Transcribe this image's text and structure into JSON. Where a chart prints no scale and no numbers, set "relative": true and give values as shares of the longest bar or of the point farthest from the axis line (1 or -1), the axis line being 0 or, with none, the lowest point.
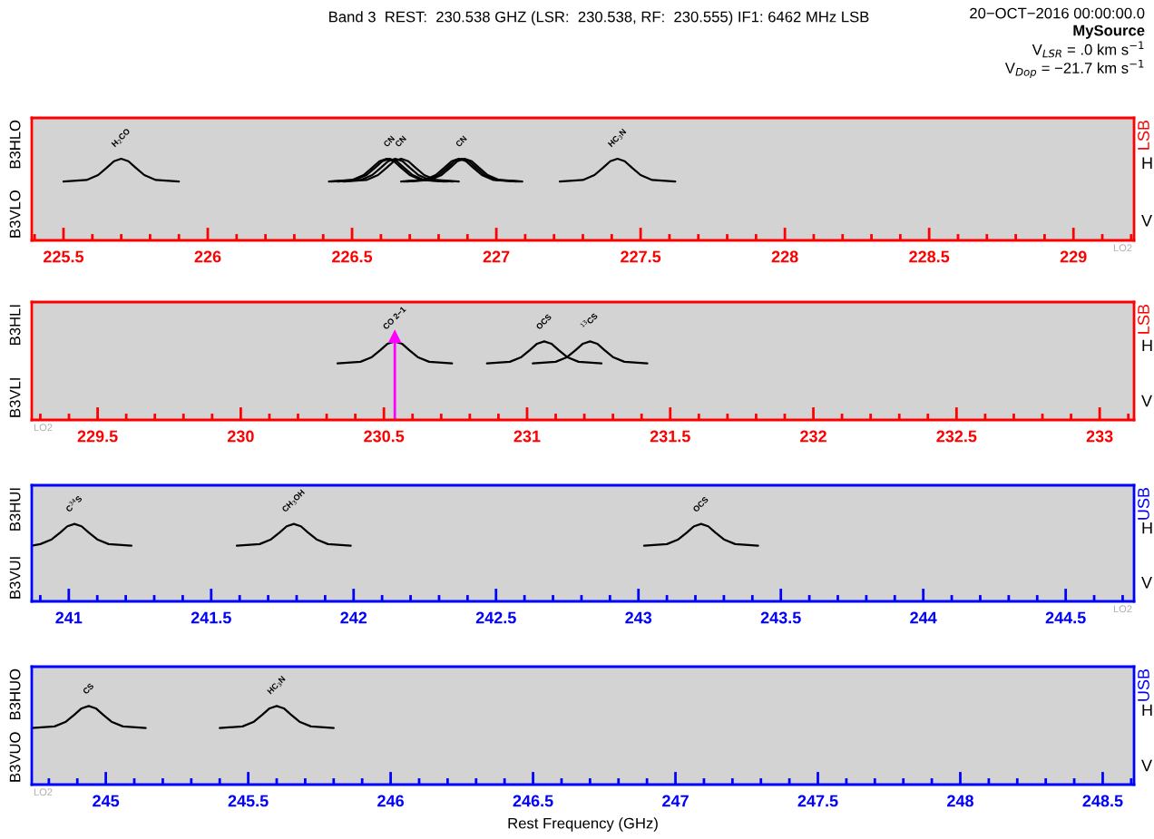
{
  "chart_data": [
    {
      "type": "line",
      "relative": true,
      "title": "Band 3  REST:  230.538 GHZ (LSR:  230.538, RF:  230.555) IF1: 6462 MHz LSB",
      "xlim": [
        225.39,
        229.21
      ],
      "xticks": [
        {
          "value": 225.4,
          "label": null
        },
        225.5,
        {
          "value": 225.6,
          "label": null
        },
        {
          "value": 225.7,
          "label": null
        },
        {
          "value": 225.8,
          "label": null
        },
        {
          "value": 225.9,
          "label": null
        },
        226,
        {
          "value": 226.1,
          "label": null
        },
        {
          "value": 226.2,
          "label": null
        },
        {
          "value": 226.3,
          "label": null
        },
        {
          "value": 226.4,
          "label": null
        },
        226.5,
        {
          "value": 226.6,
          "label": null
        },
        {
          "value": 226.7,
          "label": null
        },
        {
          "value": 226.8,
          "label": null
        },
        {
          "value": 226.9,
          "label": null
        },
        227,
        {
          "value": 227.1,
          "label": null
        },
        {
          "value": 227.2,
          "label": null
        },
        {
          "value": 227.3,
          "label": null
        },
        {
          "value": 227.4,
          "label": null
        },
        227.5,
        {
          "value": 227.6,
          "label": null
        },
        {
          "value": 227.7,
          "label": null
        },
        {
          "value": 227.8,
          "label": null
        },
        {
          "value": 227.9,
          "label": null
        },
        228,
        {
          "value": 228.1,
          "label": null
        },
        {
          "value": 228.2,
          "label": null
        },
        {
          "value": 228.3,
          "label": null
        },
        {
          "value": 228.4,
          "label": null
        },
        228.5,
        {
          "value": 228.6,
          "label": null
        },
        {
          "value": 228.7,
          "label": null
        },
        {
          "value": 228.8,
          "label": null
        },
        {
          "value": 228.9,
          "label": null
        },
        229,
        {
          "value": 229.1,
          "label": null
        },
        {
          "value": 229.2,
          "label": null
        }
      ],
      "series": [
        {
          "color": "#000000",
          "x": [
            225.5,
            225.58,
            225.62,
            225.65,
            225.675,
            225.7,
            225.725,
            225.75,
            225.78,
            225.82,
            225.9
          ],
          "values": [
            0.72,
            0.74,
            0.8,
            0.89,
            0.97,
            1,
            0.97,
            0.89,
            0.8,
            0.74,
            0.72
          ]
        },
        {
          "color": "#000000",
          "x": [
            226.42,
            226.5,
            226.54,
            226.57,
            226.595,
            226.62,
            226.645,
            226.67,
            226.7,
            226.74,
            226.82
          ],
          "values": [
            0.72,
            0.74,
            0.8,
            0.89,
            0.97,
            1,
            0.97,
            0.89,
            0.8,
            0.74,
            0.72
          ]
        },
        {
          "color": "#000000",
          "x": [
            226.43,
            226.51,
            226.55,
            226.58,
            226.605,
            226.63,
            226.655,
            226.68,
            226.71,
            226.75,
            226.83
          ],
          "values": [
            0.72,
            0.74,
            0.8,
            0.89,
            0.97,
            1,
            0.97,
            0.89,
            0.8,
            0.74,
            0.72
          ]
        },
        {
          "color": "#000000",
          "x": [
            226.45,
            226.53,
            226.57,
            226.6,
            226.625,
            226.65,
            226.675,
            226.7,
            226.73,
            226.77,
            226.85
          ],
          "values": [
            0.72,
            0.74,
            0.8,
            0.89,
            0.97,
            1,
            0.97,
            0.89,
            0.8,
            0.74,
            0.72
          ]
        },
        {
          "color": "#000000",
          "x": [
            226.47,
            226.55,
            226.59,
            226.62,
            226.645,
            226.67,
            226.695,
            226.72,
            226.75,
            226.79,
            226.87
          ],
          "values": [
            0.72,
            0.74,
            0.8,
            0.89,
            0.97,
            1,
            0.97,
            0.89,
            0.8,
            0.74,
            0.72
          ]
        },
        {
          "color": "#000000",
          "x": [
            226.67,
            226.75,
            226.79,
            226.82,
            226.845,
            226.87,
            226.895,
            226.92,
            226.95,
            226.99,
            227.07
          ],
          "values": [
            0.72,
            0.74,
            0.8,
            0.89,
            0.97,
            1,
            0.97,
            0.89,
            0.8,
            0.74,
            0.72
          ]
        },
        {
          "color": "#000000",
          "x": [
            226.68,
            226.76,
            226.8,
            226.83,
            226.855,
            226.88,
            226.905,
            226.93,
            226.96,
            227,
            227.08
          ],
          "values": [
            0.72,
            0.74,
            0.8,
            0.89,
            0.97,
            1,
            0.97,
            0.89,
            0.8,
            0.74,
            0.72
          ]
        },
        {
          "color": "#000000",
          "x": [
            226.69,
            226.77,
            226.81,
            226.84,
            226.865,
            226.89,
            226.915,
            226.94,
            226.97,
            227.01,
            227.09
          ],
          "values": [
            0.72,
            0.74,
            0.8,
            0.89,
            0.97,
            1,
            0.97,
            0.89,
            0.8,
            0.74,
            0.72
          ]
        },
        {
          "color": "#000000",
          "x": [
            227.22,
            227.3,
            227.34,
            227.37,
            227.395,
            227.42,
            227.445,
            227.47,
            227.5,
            227.54,
            227.62
          ],
          "values": [
            0.72,
            0.74,
            0.8,
            0.89,
            0.97,
            1,
            0.97,
            0.89,
            0.8,
            0.74,
            0.72
          ]
        }
      ],
      "annotations": [
        "B3HLO",
        "B3VLO",
        "LSB",
        "H",
        "V",
        "LO2",
        "20−OCT−2016 00:00:00.0",
        "MySource",
        "V$_{LSR}$ = .0 km s$^{−1}$",
        "V$_{Dop}$ = −21.7 km s$^{−1}$",
        {
          "text": "H$_{2}$CO",
          "x": 225.7,
          "y": 1
        },
        {
          "text": "CN",
          "x": 226.63,
          "y": 1
        },
        {
          "text": "CN",
          "x": 226.67,
          "y": 1
        },
        {
          "text": "CN",
          "x": 226.88,
          "y": 1
        },
        {
          "text": "HC$_{3}$N",
          "x": 227.42,
          "y": 1
        }
      ]
    },
    {
      "type": "line",
      "relative": true,
      "xlim": [
        229.27,
        233.12
      ],
      "xticks": [
        {
          "value": 229.3,
          "label": null
        },
        {
          "value": 229.4,
          "label": null
        },
        229.5,
        {
          "value": 229.6,
          "label": null
        },
        {
          "value": 229.7,
          "label": null
        },
        {
          "value": 229.8,
          "label": null
        },
        {
          "value": 229.9,
          "label": null
        },
        230,
        {
          "value": 230.1,
          "label": null
        },
        {
          "value": 230.2,
          "label": null
        },
        {
          "value": 230.3,
          "label": null
        },
        {
          "value": 230.4,
          "label": null
        },
        230.5,
        {
          "value": 230.6,
          "label": null
        },
        {
          "value": 230.7,
          "label": null
        },
        {
          "value": 230.8,
          "label": null
        },
        {
          "value": 230.9,
          "label": null
        },
        231,
        {
          "value": 231.1,
          "label": null
        },
        {
          "value": 231.2,
          "label": null
        },
        {
          "value": 231.3,
          "label": null
        },
        {
          "value": 231.4,
          "label": null
        },
        231.5,
        {
          "value": 231.6,
          "label": null
        },
        {
          "value": 231.7,
          "label": null
        },
        {
          "value": 231.8,
          "label": null
        },
        {
          "value": 231.9,
          "label": null
        },
        232,
        {
          "value": 232.1,
          "label": null
        },
        {
          "value": 232.2,
          "label": null
        },
        {
          "value": 232.3,
          "label": null
        },
        {
          "value": 232.4,
          "label": null
        },
        232.5,
        {
          "value": 232.6,
          "label": null
        },
        {
          "value": 232.7,
          "label": null
        },
        {
          "value": 232.8,
          "label": null
        },
        {
          "value": 232.9,
          "label": null
        },
        233,
        {
          "value": 233.1,
          "label": null
        }
      ],
      "series": [
        {
          "color": "#000000",
          "x": [
            230.338,
            230.418,
            230.458,
            230.488,
            230.513,
            230.538,
            230.563,
            230.588,
            230.618,
            230.658,
            230.738
          ],
          "values": [
            0.72,
            0.74,
            0.8,
            0.89,
            0.97,
            1,
            0.97,
            0.89,
            0.8,
            0.74,
            0.72
          ]
        },
        {
          "color": "#000000",
          "x": [
            230.86,
            230.94,
            230.98,
            231.01,
            231.035,
            231.06,
            231.085,
            231.11,
            231.14,
            231.18,
            231.26
          ],
          "values": [
            0.72,
            0.74,
            0.8,
            0.89,
            0.97,
            1,
            0.97,
            0.89,
            0.8,
            0.74,
            0.72
          ]
        },
        {
          "color": "#000000",
          "x": [
            231.02,
            231.1,
            231.14,
            231.17,
            231.195,
            231.22,
            231.245,
            231.27,
            231.3,
            231.34,
            231.42
          ],
          "values": [
            0.72,
            0.74,
            0.8,
            0.89,
            0.97,
            1,
            0.97,
            0.89,
            0.8,
            0.74,
            0.72
          ]
        }
      ],
      "ref_lines": [
        {
          "axis": "x",
          "value": 230.538,
          "color": "#ff00ff"
        }
      ],
      "annotations": [
        "B3HLI",
        "B3VLI",
        "LSB",
        "H",
        "V",
        "LO2",
        {
          "text": "CO 2−1",
          "x": 230.538,
          "y": 1
        },
        {
          "text": "OCS",
          "x": 231.06,
          "y": 1
        },
        {
          "text": "$^{13}$CS",
          "x": 231.22,
          "y": 1
        }
      ]
    },
    {
      "type": "line",
      "relative": true,
      "xlim": [
        240.87,
        244.74
      ],
      "xticks": [
        {
          "value": 240.9,
          "label": null
        },
        241,
        {
          "value": 241.1,
          "label": null
        },
        {
          "value": 241.2,
          "label": null
        },
        {
          "value": 241.3,
          "label": null
        },
        {
          "value": 241.4,
          "label": null
        },
        241.5,
        {
          "value": 241.6,
          "label": null
        },
        {
          "value": 241.7,
          "label": null
        },
        {
          "value": 241.8,
          "label": null
        },
        {
          "value": 241.9,
          "label": null
        },
        242,
        {
          "value": 242.1,
          "label": null
        },
        {
          "value": 242.2,
          "label": null
        },
        {
          "value": 242.3,
          "label": null
        },
        {
          "value": 242.4,
          "label": null
        },
        242.5,
        {
          "value": 242.6,
          "label": null
        },
        {
          "value": 242.7,
          "label": null
        },
        {
          "value": 242.8,
          "label": null
        },
        {
          "value": 242.9,
          "label": null
        },
        243,
        {
          "value": 243.1,
          "label": null
        },
        {
          "value": 243.2,
          "label": null
        },
        {
          "value": 243.3,
          "label": null
        },
        {
          "value": 243.4,
          "label": null
        },
        243.5,
        {
          "value": 243.6,
          "label": null
        },
        {
          "value": 243.7,
          "label": null
        },
        {
          "value": 243.8,
          "label": null
        },
        {
          "value": 243.9,
          "label": null
        },
        244,
        {
          "value": 244.1,
          "label": null
        },
        {
          "value": 244.2,
          "label": null
        },
        {
          "value": 244.3,
          "label": null
        },
        {
          "value": 244.4,
          "label": null
        },
        244.5,
        {
          "value": 244.6,
          "label": null
        },
        {
          "value": 244.7,
          "label": null
        }
      ],
      "series": [
        {
          "color": "#000000",
          "x": [
            240.87,
            240.9,
            240.94,
            240.97,
            240.995,
            241.02,
            241.045,
            241.07,
            241.1,
            241.14,
            241.22
          ],
          "values": [
            0.72,
            0.74,
            0.8,
            0.89,
            0.97,
            1,
            0.97,
            0.89,
            0.8,
            0.74,
            0.72
          ]
        },
        {
          "color": "#000000",
          "x": [
            241.59,
            241.67,
            241.71,
            241.74,
            241.765,
            241.79,
            241.815,
            241.84,
            241.87,
            241.91,
            241.99
          ],
          "values": [
            0.72,
            0.74,
            0.8,
            0.89,
            0.97,
            1,
            0.97,
            0.89,
            0.8,
            0.74,
            0.72
          ]
        },
        {
          "color": "#000000",
          "x": [
            243.02,
            243.1,
            243.14,
            243.17,
            243.195,
            243.22,
            243.245,
            243.27,
            243.3,
            243.34,
            243.42
          ],
          "values": [
            0.72,
            0.74,
            0.8,
            0.89,
            0.97,
            1,
            0.97,
            0.89,
            0.8,
            0.74,
            0.72
          ]
        }
      ],
      "annotations": [
        "B3HUI",
        "B3VUI",
        "USB",
        "H",
        "V",
        "LO2",
        {
          "text": "C$^{34}$S",
          "x": 241.02,
          "y": 1
        },
        {
          "text": "CH$_{3}$OH",
          "x": 241.79,
          "y": 1
        },
        {
          "text": "OCS",
          "x": 243.22,
          "y": 1
        }
      ]
    },
    {
      "type": "line",
      "relative": true,
      "xlabel": "Rest Frequency (GHz)",
      "xlim": [
        244.74,
        248.61
      ],
      "xticks": [
        {
          "value": 244.8,
          "label": null
        },
        {
          "value": 244.9,
          "label": null
        },
        245,
        {
          "value": 245.1,
          "label": null
        },
        {
          "value": 245.2,
          "label": null
        },
        {
          "value": 245.3,
          "label": null
        },
        {
          "value": 245.4,
          "label": null
        },
        245.5,
        {
          "value": 245.6,
          "label": null
        },
        {
          "value": 245.7,
          "label": null
        },
        {
          "value": 245.8,
          "label": null
        },
        {
          "value": 245.9,
          "label": null
        },
        246,
        {
          "value": 246.1,
          "label": null
        },
        {
          "value": 246.2,
          "label": null
        },
        {
          "value": 246.3,
          "label": null
        },
        {
          "value": 246.4,
          "label": null
        },
        246.5,
        {
          "value": 246.6,
          "label": null
        },
        {
          "value": 246.7,
          "label": null
        },
        {
          "value": 246.8,
          "label": null
        },
        {
          "value": 246.9,
          "label": null
        },
        247,
        {
          "value": 247.1,
          "label": null
        },
        {
          "value": 247.2,
          "label": null
        },
        {
          "value": 247.3,
          "label": null
        },
        {
          "value": 247.4,
          "label": null
        },
        247.5,
        {
          "value": 247.6,
          "label": null
        },
        {
          "value": 247.7,
          "label": null
        },
        {
          "value": 247.8,
          "label": null
        },
        {
          "value": 247.9,
          "label": null
        },
        248,
        {
          "value": 248.1,
          "label": null
        },
        {
          "value": 248.2,
          "label": null
        },
        {
          "value": 248.3,
          "label": null
        },
        {
          "value": 248.4,
          "label": null
        },
        248.5,
        {
          "value": 248.6,
          "label": null
        }
      ],
      "series": [
        {
          "color": "#000000",
          "x": [
            244.74,
            244.82,
            244.86,
            244.89,
            244.915,
            244.94,
            244.965,
            244.99,
            245.02,
            245.06,
            245.14
          ],
          "values": [
            0.72,
            0.74,
            0.8,
            0.89,
            0.97,
            1,
            0.97,
            0.89,
            0.8,
            0.74,
            0.72
          ]
        },
        {
          "color": "#000000",
          "x": [
            245.4,
            245.48,
            245.52,
            245.55,
            245.575,
            245.6,
            245.625,
            245.65,
            245.68,
            245.72,
            245.8
          ],
          "values": [
            0.72,
            0.74,
            0.8,
            0.89,
            0.97,
            1,
            0.97,
            0.89,
            0.8,
            0.74,
            0.72
          ]
        }
      ],
      "annotations": [
        "B3HUO",
        "B3VUO",
        "USB",
        "H",
        "V",
        "LO2",
        {
          "text": "CS",
          "x": 244.94,
          "y": 1
        },
        {
          "text": "HC$_{3}$N",
          "x": 245.6,
          "y": 1
        }
      ]
    }
  ]
}
